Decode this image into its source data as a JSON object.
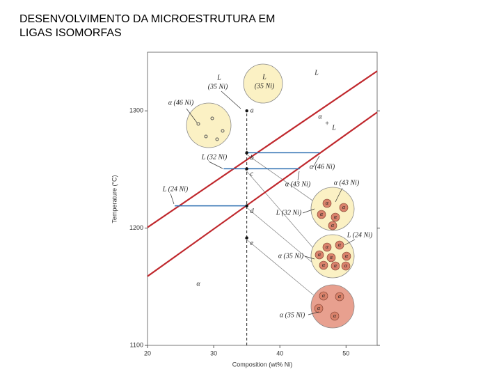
{
  "chart_data": {
    "type": "line",
    "title_lines": [
      "DESENVOLVIMENTO DA MICROESTRUTURA EM",
      "LIGAS ISOMORFAS"
    ],
    "x_label": "Composition (wt% Ni)",
    "y_label": "Temperature (°C)",
    "xlim": [
      20,
      54.7
    ],
    "ylim": [
      1100,
      1350
    ],
    "xticks": [
      20,
      30,
      40,
      50
    ],
    "yticks": [
      1100,
      1200,
      1300
    ],
    "series": [
      {
        "color": "#c0282d",
        "x": [
          20,
          54.7
        ],
        "values": [
          1200.6,
          1333.9
        ]
      },
      {
        "color": "#c0282d",
        "x": [
          20,
          54.7
        ],
        "values": [
          1158.9,
          1298.8
        ]
      },
      {
        "color": "#2a6db0",
        "x": [
          35,
          46
        ],
        "values": [
          1264.3,
          1264.3
        ]
      },
      {
        "color": "#2a6db0",
        "x": [
          31.5,
          43
        ],
        "values": [
          1250.6,
          1250.6
        ]
      },
      {
        "color": "#2a6db0",
        "x": [
          24.1,
          35
        ],
        "values": [
          1219,
          1219
        ]
      },
      {
        "color": "#222222",
        "dash": true,
        "x": [
          35,
          35
        ],
        "values": [
          1100,
          1300
        ]
      }
    ],
    "points": {
      "labels": [
        "a",
        "b",
        "c",
        "d",
        "e"
      ],
      "x": [
        35,
        35,
        35,
        35,
        35
      ],
      "values": [
        1300,
        1264.3,
        1250.6,
        1219,
        1191.7
      ]
    },
    "annotations": [
      "L",
      "(35 Ni)",
      "L",
      "(35 Ni)",
      "L",
      "α (46 Ni)",
      "α",
      "+",
      "L",
      "L (32 Ni)",
      "α (46 Ni)",
      "L (24 Ni)",
      "α (43 Ni)",
      "α (43 Ni)",
      "L (32 Ni)",
      "L (24 Ni)",
      "α (35 Ni)",
      "α",
      "α (35 Ni)"
    ],
    "grain_symbol": "α"
  }
}
